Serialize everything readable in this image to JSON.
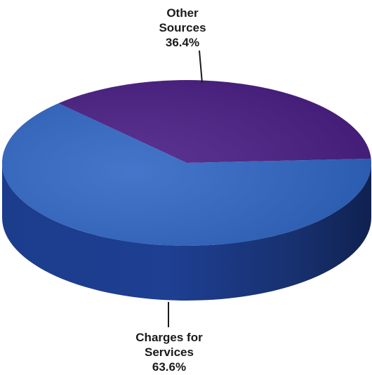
{
  "chart_data": {
    "type": "pie",
    "title": "",
    "slices": [
      {
        "name": "Other Sources",
        "label_lines": [
          "Other",
          "Sources"
        ],
        "value": 36.4,
        "value_label": "36.4%",
        "color": "#4a1f86"
      },
      {
        "name": "Charges for Services",
        "label_lines": [
          "Charges for",
          "Services"
        ],
        "value": 63.6,
        "value_label": "63.6%",
        "color": "#2f66c4"
      }
    ],
    "side_color": "#1d3f8e",
    "style": "3d-pie"
  }
}
